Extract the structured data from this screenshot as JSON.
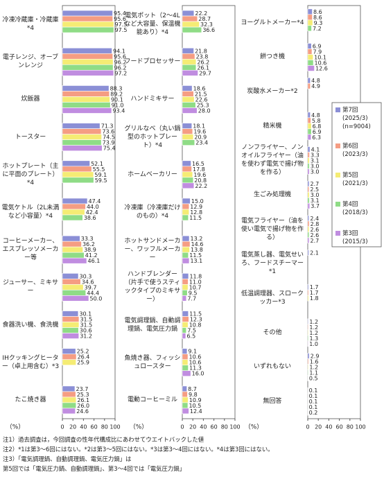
{
  "legend": [
    {
      "name": "第7回",
      "period": "(2025/3)",
      "sample": "(n=9004)",
      "color": "#8b8fd6"
    },
    {
      "name": "第6回",
      "period": "(2023/3)",
      "color": "#f59d83"
    },
    {
      "name": "第5回",
      "period": "(2021/3)",
      "color": "#f5ec74"
    },
    {
      "name": "第4回",
      "period": "(2018/3)",
      "color": "#8fdc86"
    },
    {
      "name": "第3回",
      "period": "(2015/3)",
      "color": "#c08de0"
    }
  ],
  "chart_data": [
    {
      "type": "bar",
      "orientation": "horizontal",
      "xlabel": "（%）",
      "xlim": [
        0,
        100
      ],
      "xticks": [
        0,
        20,
        40,
        60,
        80,
        100
      ],
      "categories": [
        "冷凍冷蔵庫・冷蔵庫*4",
        "電子レンジ、オーブンレンジ",
        "炊飯器",
        "トースター",
        "ホットプレート（主に平面のプレート）*4",
        "電気ケトル（2L未満など小容量）*4",
        "コーヒーメーカー、エスプレッソメーカー等",
        "ジューサー、ミキサー",
        "食器洗い機、食洗機",
        "IHクッキングヒーター（卓上用含む）*3",
        "たこ焼き器"
      ],
      "series": [
        {
          "values": [
            95.4,
            94.1,
            88.3,
            71.3,
            52.1,
            47.4,
            33.3,
            30.3,
            30.1,
            25.2,
            23.7
          ],
          "value_labels": [
            "95.4",
            "94.1",
            "88.3",
            "71.3",
            "52.1",
            "47.4",
            "33.3",
            "30.3",
            "30.1",
            "25.2",
            "23.7"
          ]
        },
        {
          "values": [
            95.6,
            95.6,
            89.2,
            73.6,
            55.5,
            44.0,
            36.2,
            34.6,
            31.5,
            26.4,
            25.3
          ],
          "value_labels": [
            "95.6",
            "95.6",
            "89.2",
            "73.6",
            "55.5",
            "44.0",
            "36.2",
            "34.6",
            "31.5",
            "26.4",
            "25.3"
          ]
        },
        {
          "values": [
            97.5,
            96.2,
            90.1,
            74.5,
            59.1,
            42.4,
            38.9,
            39.7,
            31.5,
            25.9,
            26.1
          ],
          "value_labels": [
            "97.5",
            "96.2",
            "90.1",
            "74.5",
            "59.1",
            "42.4",
            "38.9",
            "39.7",
            "31.5",
            "25.9",
            "26.1"
          ]
        },
        {
          "values": [
            97.5,
            96.2,
            91.0,
            73.9,
            59.5,
            38.6,
            41.2,
            44.4,
            30.6,
            null,
            26.0
          ],
          "value_labels": [
            "97.5",
            "96.2",
            "91.0",
            "73.9",
            "59.5",
            "38.6",
            "41.2",
            "44.4",
            "30.6",
            null,
            "26.0"
          ]
        },
        {
          "values": [
            null,
            97.2,
            93.4,
            75.4,
            null,
            null,
            46.1,
            50.0,
            31.2,
            null,
            24.6
          ],
          "value_labels": [
            null,
            "97.2",
            "93.4",
            "75.4",
            null,
            null,
            "46.1",
            "50.0",
            "31.2",
            null,
            "24.6"
          ]
        }
      ]
    },
    {
      "type": "bar",
      "orientation": "horizontal",
      "xlabel": "（%）",
      "xlim": [
        0,
        100
      ],
      "xticks": [
        0,
        20,
        40,
        60,
        80,
        100
      ],
      "categories": [
        "電気ポット（2～4Lなど大容量、保温機能あり）*4",
        "フードプロセッサー",
        "ハンドミキサー",
        "グリルなべ（丸い鍋型のホットプレート）*4",
        "ホームベーカリー",
        "冷凍庫（冷凍庫だけのもの）*4",
        "ホットサンドメーカー、ワッフルメーカー",
        "ハンドブレンダー（片手で使うスティックタイプのミキサー）",
        "電気調理鍋、自動調理鍋、電気圧力鍋",
        "魚焼き器、フィッシュロースター",
        "電動コーヒーミル"
      ],
      "series": [
        {
          "values": [
            22.2,
            21.8,
            18.6,
            18.1,
            16.5,
            15.0,
            13.2,
            11.8,
            11.5,
            9.1,
            8.7
          ],
          "value_labels": [
            "22.2",
            "21.8",
            "18.6",
            "18.1",
            "16.5",
            "15.0",
            "13.2",
            "11.8",
            "11.5",
            "9.1",
            "8.7"
          ]
        },
        {
          "values": [
            28.7,
            23.8,
            21.5,
            19.6,
            17.8,
            12.9,
            14.6,
            11.0,
            12.3,
            10.6,
            9.8
          ],
          "value_labels": [
            "28.7",
            "23.8",
            "21.5",
            "19.6",
            "17.8",
            "12.9",
            "14.6",
            "11.0",
            "12.3",
            "10.6",
            "9.8"
          ]
        },
        {
          "values": [
            32.3,
            26.2,
            22.6,
            20.9,
            19.6,
            12.8,
            13.8,
            10.7,
            10.8,
            10.6,
            10.9
          ],
          "value_labels": [
            "32.3",
            "26.2",
            "22.6",
            "20.9",
            "19.6",
            "12.8",
            "13.8",
            "10.7",
            "10.8",
            "10.6",
            "10.9"
          ]
        },
        {
          "values": [
            36.6,
            26.1,
            25.3,
            23.4,
            20.8,
            11.5,
            11.5,
            9.5,
            7.5,
            11.3,
            10.5
          ],
          "value_labels": [
            "36.6",
            "26.1",
            "25.3",
            "23.4",
            "20.8",
            "11.5",
            "11.5",
            "9.5",
            "7.5",
            "11.3",
            "10.5"
          ]
        },
        {
          "values": [
            null,
            29.7,
            28.0,
            null,
            22.2,
            null,
            13.1,
            7.7,
            6.5,
            16.0,
            12.4
          ],
          "value_labels": [
            null,
            "29.7",
            "28.0",
            null,
            "22.2",
            null,
            "13.1",
            "7.7",
            "6.5",
            "16.0",
            "12.4"
          ]
        }
      ]
    },
    {
      "type": "bar",
      "orientation": "horizontal",
      "xlabel": "（%）",
      "xlim": [
        0,
        100
      ],
      "xticks": [
        0,
        20,
        40,
        60,
        80,
        100
      ],
      "categories": [
        "ヨーグルトメーカー*4",
        "餅つき機",
        "炭酸水メーカー*2",
        "精米機",
        "ノンフライヤー、ノンオイルフライヤー（油を使わず電気で揚げ物を作る）",
        "生ごみ処理機",
        "電気フライヤー（油を使い電気で揚げ物を作る）",
        "電気蒸し器、電気せいろ、フードスチーマー*1",
        "低温調理器、スロークッカー*3",
        "その他",
        "いずれもない",
        "無回答"
      ],
      "series": [
        {
          "values": [
            8.6,
            6.9,
            4.8,
            4.8,
            4.1,
            2.7,
            2.4,
            2.1,
            1.7,
            1.2,
            2.9,
            0.1
          ],
          "value_labels": [
            "8.6",
            "6.9",
            "4.8",
            "4.8",
            "4.1",
            "2.7",
            "2.4",
            "2.1",
            "1.7",
            "1.2",
            "2.9",
            "0.1"
          ]
        },
        {
          "values": [
            8.6,
            7.9,
            4.9,
            5.8,
            3.3,
            2.5,
            2.8,
            null,
            1.7,
            1.2,
            1.6,
            0.1
          ],
          "value_labels": [
            "8.6",
            "7.9",
            "4.9",
            "5.8",
            "3.3",
            "2.5",
            "2.8",
            null,
            "1.7",
            "1.2",
            "1.6",
            "0.1"
          ]
        },
        {
          "values": [
            9.3,
            10.1,
            null,
            6.8,
            3.1,
            3.0,
            2.6,
            null,
            1.8,
            1.2,
            1.2,
            0.1
          ],
          "value_labels": [
            "9.3",
            "10.1",
            null,
            "6.8",
            "3.1",
            "3.0",
            "2.6",
            null,
            "1.8",
            "1.2",
            "1.2",
            "0.1"
          ]
        },
        {
          "values": [
            7.2,
            10.6,
            null,
            6.9,
            3.0,
            3.1,
            2.6,
            null,
            null,
            1.3,
            1.1,
            0.1
          ],
          "value_labels": [
            "7.2",
            "10.6",
            null,
            "6.9",
            "3.0",
            "3.1",
            "2.6",
            null,
            null,
            "1.3",
            "1.1",
            "0.1"
          ]
        },
        {
          "values": [
            null,
            12.6,
            null,
            6.3,
            3.0,
            3.7,
            2.7,
            null,
            null,
            1.0,
            0.5,
            0.2
          ],
          "value_labels": [
            null,
            "12.6",
            null,
            "6.3",
            "3.0",
            "3.7",
            "2.7",
            null,
            null,
            "1.0",
            "0.5",
            "0.2"
          ]
        }
      ]
    }
  ],
  "notes": [
    "注1）過去調査は，今回調査の性年代構成比にあわせてウエイトバックした値",
    "注2）*1は第3～6回にはない。*2は第3～5回にはない。*3は第3～4回にはない。*4は第3回にはない。",
    "注3）「電気調理鍋、自動調理鍋、電気圧力鍋」は",
    "第5回では「電気圧力鍋、自動調理鍋」、第3～4回では「電気圧力鍋」"
  ]
}
